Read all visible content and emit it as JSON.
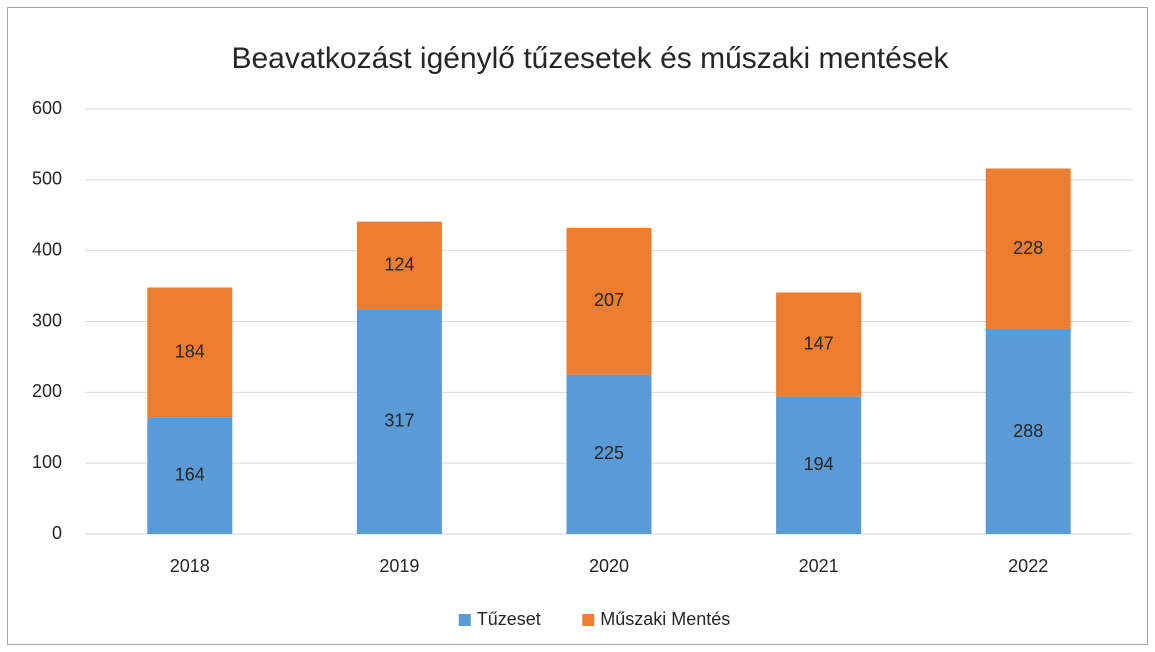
{
  "chart_data": {
    "type": "bar",
    "stacked": true,
    "title": "Beavatkozást igénylő tűzesetek és műszaki mentések",
    "categories": [
      "2018",
      "2019",
      "2020",
      "2021",
      "2022"
    ],
    "series": [
      {
        "name": "Tűzeset",
        "color": "#5b9bd5",
        "values": [
          164,
          317,
          225,
          194,
          288
        ]
      },
      {
        "name": "Műszaki Mentés",
        "color": "#ed7d31",
        "values": [
          184,
          124,
          207,
          147,
          228
        ]
      }
    ],
    "ylim": [
      0,
      600
    ],
    "yticks": [
      0,
      100,
      200,
      300,
      400,
      500,
      600
    ],
    "grid": true,
    "legend": "bottom"
  }
}
